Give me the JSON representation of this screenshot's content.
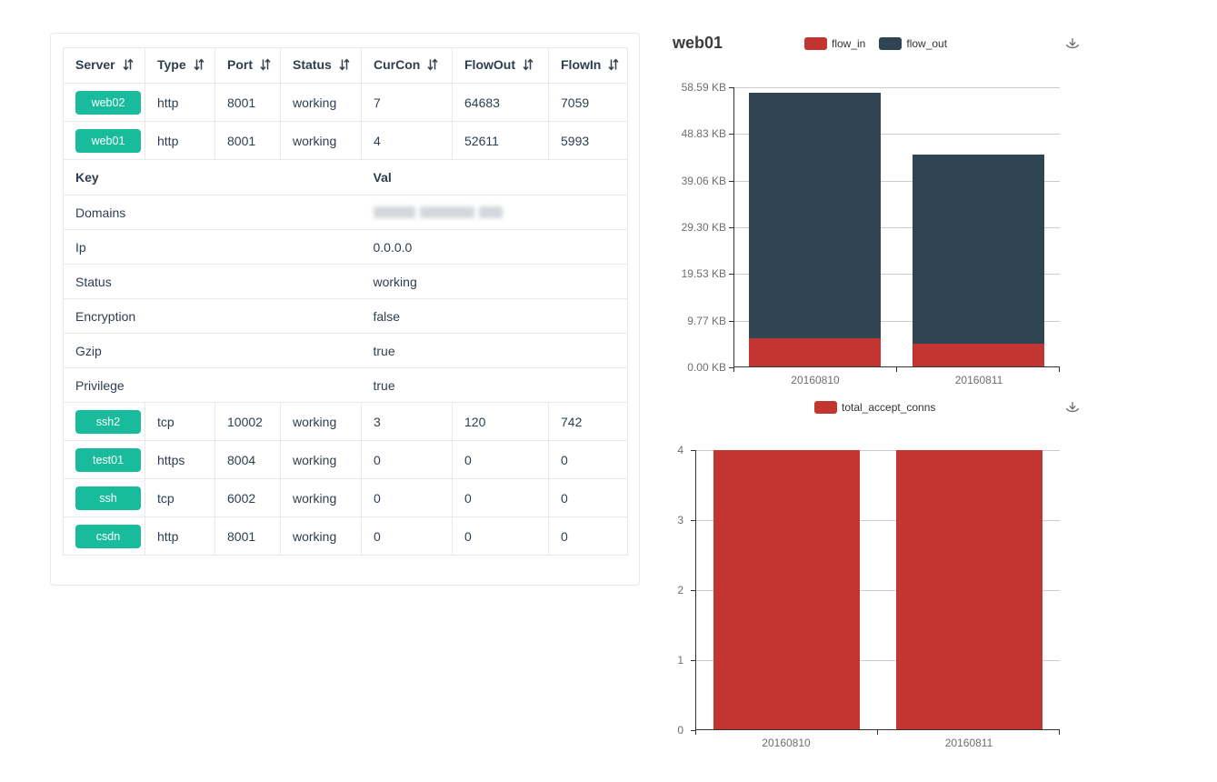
{
  "table": {
    "columns": [
      {
        "label": "Server"
      },
      {
        "label": "Type"
      },
      {
        "label": "Port"
      },
      {
        "label": "Status"
      },
      {
        "label": "CurCon"
      },
      {
        "label": "FlowOut"
      },
      {
        "label": "FlowIn"
      }
    ],
    "rows_top": [
      {
        "server": "web02",
        "type": "http",
        "port": "8001",
        "status": "working",
        "curcon": "7",
        "flowout": "64683",
        "flowin": "7059"
      },
      {
        "server": "web01",
        "type": "http",
        "port": "8001",
        "status": "working",
        "curcon": "4",
        "flowout": "52611",
        "flowin": "5993"
      }
    ],
    "detail": {
      "key_header": "Key",
      "val_header": "Val",
      "rows": [
        {
          "key": "Domains",
          "val": "",
          "masked": true
        },
        {
          "key": "Ip",
          "val": "0.0.0.0"
        },
        {
          "key": "Status",
          "val": "working"
        },
        {
          "key": "Encryption",
          "val": "false"
        },
        {
          "key": "Gzip",
          "val": "true"
        },
        {
          "key": "Privilege",
          "val": "true"
        }
      ]
    },
    "rows_bottom": [
      {
        "server": "ssh2",
        "type": "tcp",
        "port": "10002",
        "status": "working",
        "curcon": "3",
        "flowout": "120",
        "flowin": "742"
      },
      {
        "server": "test01",
        "type": "https",
        "port": "8004",
        "status": "working",
        "curcon": "0",
        "flowout": "0",
        "flowin": "0"
      },
      {
        "server": "ssh",
        "type": "tcp",
        "port": "6002",
        "status": "working",
        "curcon": "0",
        "flowout": "0",
        "flowin": "0"
      },
      {
        "server": "csdn",
        "type": "http",
        "port": "8001",
        "status": "working",
        "curcon": "0",
        "flowout": "0",
        "flowin": "0"
      }
    ],
    "accent_green": "#18bc9c"
  },
  "chart_data": [
    {
      "type": "bar",
      "stacked": true,
      "title": "web01",
      "categories": [
        "20160810",
        "20160811"
      ],
      "series": [
        {
          "name": "flow_in",
          "color": "#c23531",
          "values": [
            5.85,
            4.8
          ],
          "unit": "KB"
        },
        {
          "name": "flow_out",
          "color": "#2f4554",
          "values": [
            51.38,
            39.5
          ],
          "unit": "KB"
        }
      ],
      "ylim": [
        0,
        58.59
      ],
      "yticks": [
        "0.00 KB",
        "9.77 KB",
        "19.53 KB",
        "29.30 KB",
        "39.06 KB",
        "48.83 KB",
        "58.59 KB"
      ],
      "legend_position": "top-center",
      "grid": true
    },
    {
      "type": "bar",
      "stacked": false,
      "title": "",
      "categories": [
        "20160810",
        "20160811"
      ],
      "series": [
        {
          "name": "total_accept_conns",
          "color": "#c23531",
          "values": [
            4,
            4
          ]
        }
      ],
      "ylim": [
        0,
        4
      ],
      "yticks": [
        "0",
        "1",
        "2",
        "3",
        "4"
      ],
      "legend_position": "top-center",
      "grid": true
    }
  ]
}
